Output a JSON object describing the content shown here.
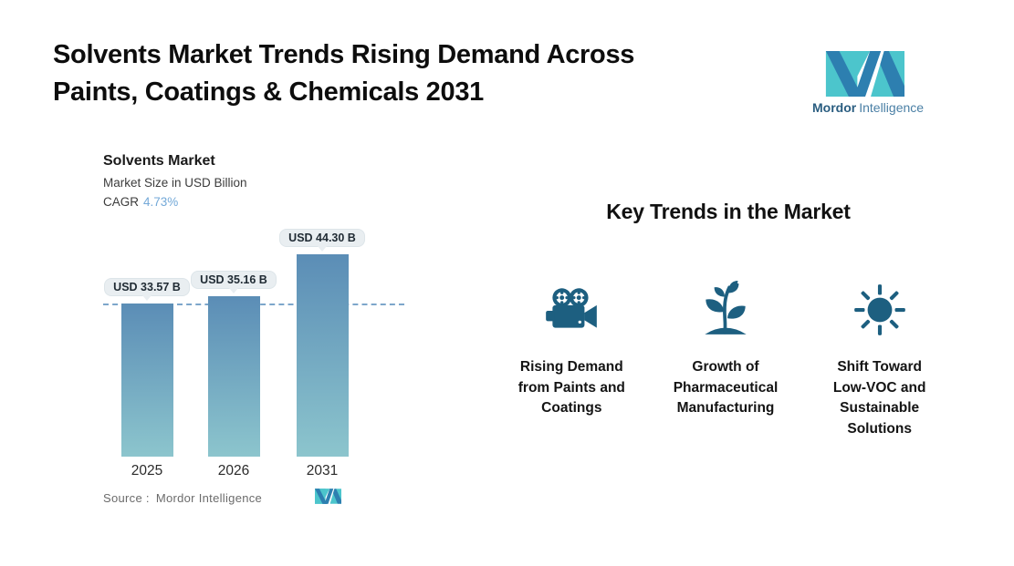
{
  "header": {
    "title_line1": "Solvents Market Trends Rising Demand Across",
    "title_line2": "Paints, Coatings & Chemicals 2031"
  },
  "brand": {
    "name_bold": "Mordor",
    "name_light": "Intelligence",
    "logo_teal": "#4cc5cc",
    "logo_blue": "#2d7fb0"
  },
  "chart": {
    "title": "Solvents Market",
    "subtitle": "Market Size in USD Billion",
    "cagr_label": "CAGR",
    "cagr_value": "4.73%",
    "source_label": "Source :",
    "source_value": "Mordor Intelligence"
  },
  "chart_data": {
    "type": "bar",
    "title": "Solvents Market",
    "subtitle": "Market Size in USD Billion",
    "cagr": "4.73%",
    "unit": "USD Billion",
    "categories": [
      "2025",
      "2026",
      "2031"
    ],
    "values": [
      33.57,
      35.16,
      44.3
    ],
    "value_labels": [
      "USD 33.57 B",
      "USD 35.16 B",
      "USD 44.30 B"
    ],
    "ylim": [
      0,
      48
    ],
    "axes_visible": false,
    "grid": false,
    "legend": "none",
    "reference_line": {
      "value": 33.57,
      "style": "dashed",
      "color": "#7da6cb"
    },
    "bar_gradient_top": "#5b8db6",
    "bar_gradient_bottom": "#8cc5cd"
  },
  "trends": {
    "heading": "Key Trends in the Market",
    "icon_color": "#1d5f80",
    "items": [
      {
        "icon": "video-camera-icon",
        "lines": [
          "Rising Demand",
          "from Paints and",
          "Coatings"
        ]
      },
      {
        "icon": "plant-sprout-icon",
        "lines": [
          "Growth of",
          "Pharmaceutical",
          "Manufacturing"
        ]
      },
      {
        "icon": "sun-icon",
        "lines": [
          "Shift Toward",
          "Low-VOC and",
          "Sustainable",
          "Solutions"
        ]
      }
    ]
  }
}
